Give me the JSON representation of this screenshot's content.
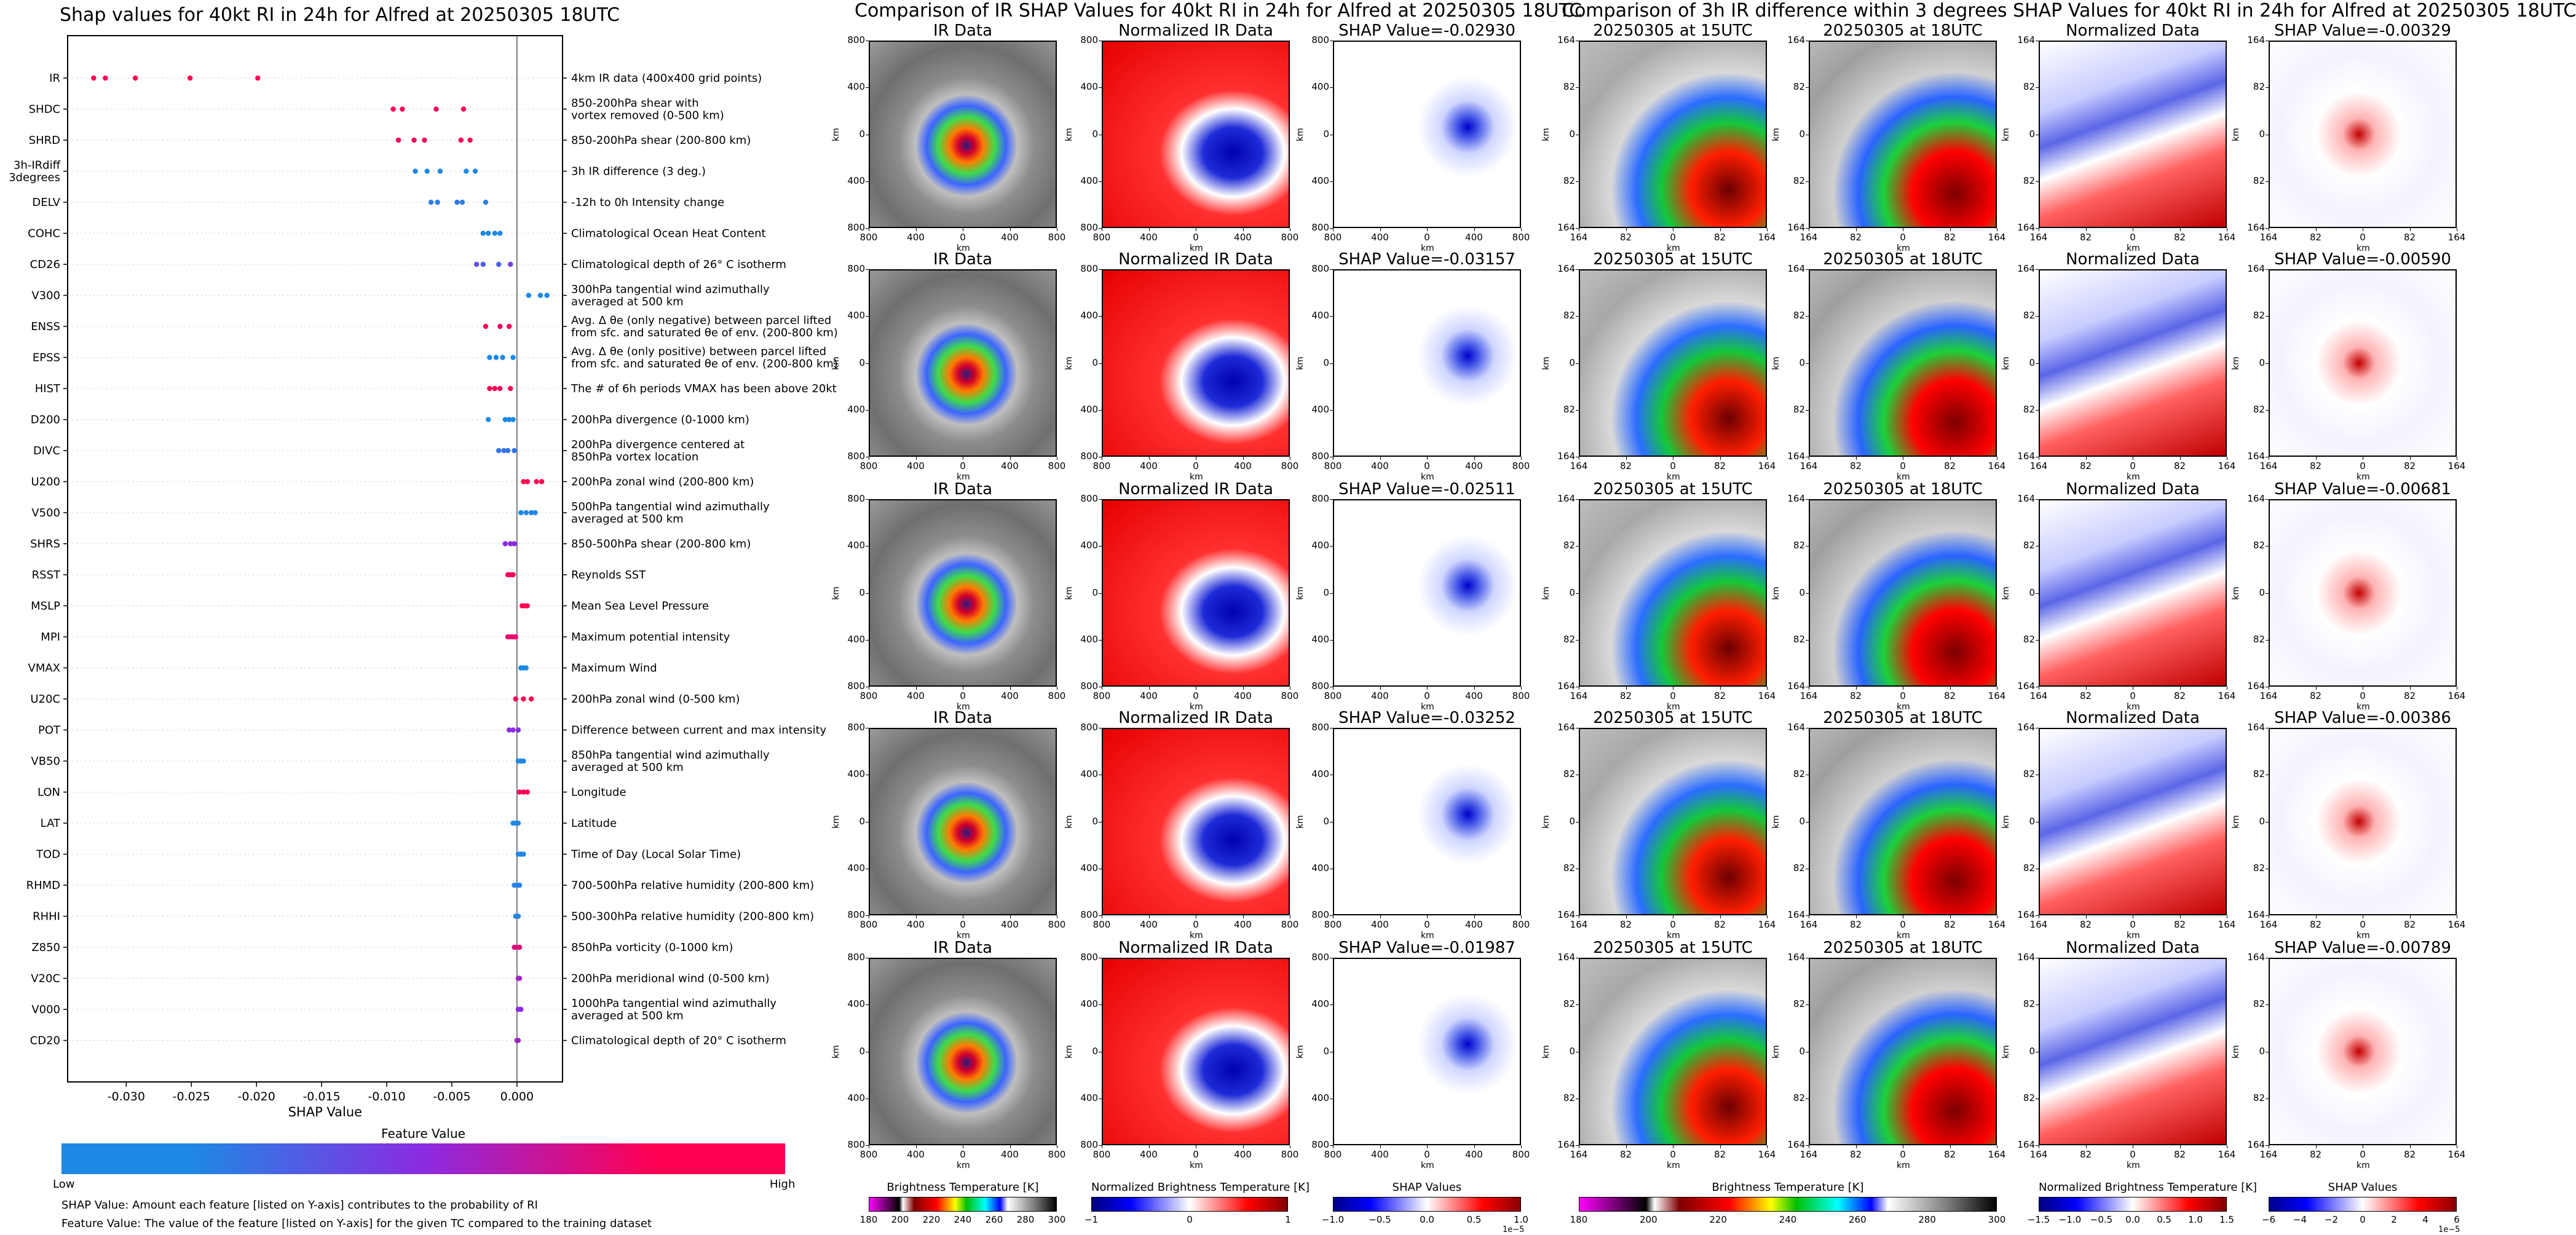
{
  "left_panel": {
    "title": "Shap values for 40kt RI in 24h for Alfred at 20250305 18UTC",
    "xlabel": "SHAP Value",
    "colorbar_title": "Feature Value",
    "colorbar_low": "Low",
    "colorbar_high": "High",
    "footnote_1": "SHAP Value: Amount each feature [listed on Y-axis] contributes to the probability of RI",
    "footnote_2": "Feature Value: The value of the feature [listed on Y-axis] for the given TC compared to the training dataset",
    "colors": {
      "low": "#1e88e5",
      "mid": "#8a2be2",
      "high": "#ff0052"
    }
  },
  "chart_data": {
    "type": "scatter",
    "xlim": [
      -0.0345,
      0.0035
    ],
    "xticks": [
      "-0.030",
      "-0.025",
      "-0.020",
      "-0.015",
      "-0.010",
      "-0.005",
      "0.000"
    ],
    "xtick_values": [
      -0.03,
      -0.025,
      -0.02,
      -0.015,
      -0.01,
      -0.005,
      0.0
    ],
    "features": [
      {
        "name": "IR",
        "desc": [
          "4km IR data (400x400 grid points)"
        ],
        "points": [
          {
            "x": -0.0325,
            "v": 1
          },
          {
            "x": -0.0316,
            "v": 1
          },
          {
            "x": -0.0293,
            "v": 1
          },
          {
            "x": -0.0251,
            "v": 1
          },
          {
            "x": -0.0199,
            "v": 1
          }
        ]
      },
      {
        "name": "SHDC",
        "desc": [
          "850-200hPa shear with",
          "vortex removed (0-500 km)"
        ],
        "points": [
          {
            "x": -0.0095,
            "v": 1
          },
          {
            "x": -0.0088,
            "v": 1
          },
          {
            "x": -0.0062,
            "v": 0.95
          },
          {
            "x": -0.0041,
            "v": 1
          }
        ]
      },
      {
        "name": "SHRD",
        "desc": [
          "850-200hPa shear (200-800 km)"
        ],
        "points": [
          {
            "x": -0.0091,
            "v": 1
          },
          {
            "x": -0.0079,
            "v": 1
          },
          {
            "x": -0.0071,
            "v": 0.95
          },
          {
            "x": -0.0043,
            "v": 1
          },
          {
            "x": -0.0036,
            "v": 1
          }
        ]
      },
      {
        "name": "3h-IRdiff\n3degrees",
        "desc": [
          "3h IR difference (3 deg.)"
        ],
        "points": [
          {
            "x": -0.0078,
            "v": 0
          },
          {
            "x": -0.0069,
            "v": 0
          },
          {
            "x": -0.0059,
            "v": 0
          },
          {
            "x": -0.0039,
            "v": 0
          },
          {
            "x": -0.0032,
            "v": 0
          }
        ]
      },
      {
        "name": "DELV",
        "desc": [
          "-12h to 0h Intensity change"
        ],
        "points": [
          {
            "x": -0.0066,
            "v": 0.05
          },
          {
            "x": -0.0061,
            "v": 0.05
          },
          {
            "x": -0.0046,
            "v": 0.1
          },
          {
            "x": -0.0042,
            "v": 0.05
          },
          {
            "x": -0.0024,
            "v": 0.05
          }
        ]
      },
      {
        "name": "COHC",
        "desc": [
          "Climatological Ocean Heat Content"
        ],
        "points": [
          {
            "x": -0.0026,
            "v": 0
          },
          {
            "x": -0.0022,
            "v": 0
          },
          {
            "x": -0.0017,
            "v": 0
          },
          {
            "x": -0.0013,
            "v": 0
          }
        ]
      },
      {
        "name": "CD26",
        "desc": [
          "Climatological depth of 26° C isotherm"
        ],
        "points": [
          {
            "x": -0.0031,
            "v": 0.3
          },
          {
            "x": -0.0026,
            "v": 0.2
          },
          {
            "x": -0.0014,
            "v": 0.2
          },
          {
            "x": -0.0005,
            "v": 0.4
          }
        ]
      },
      {
        "name": "V300",
        "desc": [
          "300hPa tangential wind azimuthally",
          "averaged at 500 km"
        ],
        "points": [
          {
            "x": 0.0009,
            "v": 0
          },
          {
            "x": 0.0018,
            "v": 0
          },
          {
            "x": 0.0023,
            "v": 0
          }
        ]
      },
      {
        "name": "ENSS",
        "desc": [
          "Avg. Δ θe (only negative) between parcel lifted",
          "from sfc. and saturated θe of env. (200-800 km)"
        ],
        "points": [
          {
            "x": -0.0024,
            "v": 1
          },
          {
            "x": -0.0013,
            "v": 0.95
          },
          {
            "x": -0.0006,
            "v": 1
          }
        ]
      },
      {
        "name": "EPSS",
        "desc": [
          "Avg. Δ θe (only positive) between parcel lifted",
          "from sfc. and saturated θe of env. (200-800 km)"
        ],
        "points": [
          {
            "x": -0.0021,
            "v": 0
          },
          {
            "x": -0.0016,
            "v": 0
          },
          {
            "x": -0.0011,
            "v": 0
          },
          {
            "x": -0.0003,
            "v": 0
          }
        ]
      },
      {
        "name": "HIST",
        "desc": [
          "The # of 6h periods VMAX has been above 20kt"
        ],
        "points": [
          {
            "x": -0.0021,
            "v": 1
          },
          {
            "x": -0.0017,
            "v": 1
          },
          {
            "x": -0.0013,
            "v": 0.95
          },
          {
            "x": -0.0005,
            "v": 1
          }
        ]
      },
      {
        "name": "D200",
        "desc": [
          "200hPa divergence (0-1000 km)"
        ],
        "points": [
          {
            "x": -0.0022,
            "v": 0
          },
          {
            "x": -0.0009,
            "v": 0
          },
          {
            "x": -0.0006,
            "v": 0
          },
          {
            "x": -0.0003,
            "v": 0
          }
        ]
      },
      {
        "name": "DIVC",
        "desc": [
          "200hPa divergence centered at",
          "850hPa vortex location"
        ],
        "points": [
          {
            "x": -0.0014,
            "v": 0.1
          },
          {
            "x": -0.001,
            "v": 0.1
          },
          {
            "x": -0.0007,
            "v": 0.1
          },
          {
            "x": -0.0002,
            "v": 0.1
          }
        ]
      },
      {
        "name": "U200",
        "desc": [
          "200hPa zonal wind (200-800 km)"
        ],
        "points": [
          {
            "x": 0.0005,
            "v": 1
          },
          {
            "x": 0.0008,
            "v": 1
          },
          {
            "x": 0.0015,
            "v": 1
          },
          {
            "x": 0.0019,
            "v": 1
          }
        ]
      },
      {
        "name": "V500",
        "desc": [
          "500hPa tangential wind azimuthally",
          "averaged at 500 km"
        ],
        "points": [
          {
            "x": 0.0003,
            "v": 0
          },
          {
            "x": 0.0007,
            "v": 0
          },
          {
            "x": 0.0011,
            "v": 0
          },
          {
            "x": 0.0014,
            "v": 0
          }
        ]
      },
      {
        "name": "SHRS",
        "desc": [
          "850-500hPa shear (200-800 km)"
        ],
        "points": [
          {
            "x": -0.0009,
            "v": 0.5
          },
          {
            "x": -0.0005,
            "v": 0.5
          },
          {
            "x": -0.0002,
            "v": 0.5
          }
        ]
      },
      {
        "name": "RSST",
        "desc": [
          "Reynolds SST"
        ],
        "points": [
          {
            "x": -0.0007,
            "v": 0.95
          },
          {
            "x": -0.0005,
            "v": 0.95
          },
          {
            "x": -0.0003,
            "v": 0.95
          }
        ]
      },
      {
        "name": "MSLP",
        "desc": [
          "Mean Sea Level Pressure"
        ],
        "points": [
          {
            "x": 0.0004,
            "v": 1
          },
          {
            "x": 0.0006,
            "v": 1
          },
          {
            "x": 0.0008,
            "v": 1
          }
        ]
      },
      {
        "name": "MPI",
        "desc": [
          "Maximum potential intensity"
        ],
        "points": [
          {
            "x": -0.0007,
            "v": 0.9
          },
          {
            "x": -0.0005,
            "v": 0.9
          },
          {
            "x": -0.0003,
            "v": 0.9
          },
          {
            "x": -0.0001,
            "v": 0.9
          }
        ]
      },
      {
        "name": "VMAX",
        "desc": [
          "Maximum Wind"
        ],
        "points": [
          {
            "x": 0.0003,
            "v": 0
          },
          {
            "x": 0.0005,
            "v": 0
          },
          {
            "x": 0.0007,
            "v": 0
          }
        ]
      },
      {
        "name": "U20C",
        "desc": [
          "200hPa zonal wind (0-500 km)"
        ],
        "points": [
          {
            "x": -0.0001,
            "v": 1
          },
          {
            "x": 0.0005,
            "v": 1
          },
          {
            "x": 0.0011,
            "v": 1
          }
        ]
      },
      {
        "name": "POT",
        "desc": [
          "Difference between current and max intensity"
        ],
        "points": [
          {
            "x": -0.0006,
            "v": 0.5
          },
          {
            "x": -0.0003,
            "v": 0.5
          },
          {
            "x": 0.0001,
            "v": 0.5
          }
        ]
      },
      {
        "name": "VB50",
        "desc": [
          "850hPa tangential wind azimuthally",
          "averaged at 500 km"
        ],
        "points": [
          {
            "x": 0.0001,
            "v": 0
          },
          {
            "x": 0.0003,
            "v": 0
          },
          {
            "x": 0.0005,
            "v": 0
          }
        ]
      },
      {
        "name": "LON",
        "desc": [
          "Longitude"
        ],
        "points": [
          {
            "x": 0.0002,
            "v": 1
          },
          {
            "x": 0.0005,
            "v": 1
          },
          {
            "x": 0.0008,
            "v": 1
          }
        ]
      },
      {
        "name": "LAT",
        "desc": [
          "Latitude"
        ],
        "points": [
          {
            "x": -0.0003,
            "v": 0
          },
          {
            "x": -0.0001,
            "v": 0
          },
          {
            "x": 0.0001,
            "v": 0
          }
        ]
      },
      {
        "name": "TOD",
        "desc": [
          "Time of Day (Local Solar Time)"
        ],
        "points": [
          {
            "x": 0.0001,
            "v": 0
          },
          {
            "x": 0.0003,
            "v": 0
          },
          {
            "x": 0.0005,
            "v": 0
          }
        ]
      },
      {
        "name": "RHMD",
        "desc": [
          "700-500hPa relative humidity (200-800 km)"
        ],
        "points": [
          {
            "x": -0.0002,
            "v": 0.05
          },
          {
            "x": 0.0,
            "v": 0.05
          },
          {
            "x": 0.0002,
            "v": 0.05
          }
        ]
      },
      {
        "name": "RHHI",
        "desc": [
          "500-300hPa relative humidity (200-800 km)"
        ],
        "points": [
          {
            "x": -0.0001,
            "v": 0
          },
          {
            "x": 0.0001,
            "v": 0
          }
        ]
      },
      {
        "name": "Z850",
        "desc": [
          "850hPa vorticity (0-1000 km)"
        ],
        "points": [
          {
            "x": -0.0002,
            "v": 0.85
          },
          {
            "x": 0.0,
            "v": 0.85
          },
          {
            "x": 0.0002,
            "v": 0.85
          }
        ]
      },
      {
        "name": "V20C",
        "desc": [
          "200hPa meridional wind (0-500 km)"
        ],
        "points": [
          {
            "x": 0.0001,
            "v": 0.6
          },
          {
            "x": 0.0002,
            "v": 0.6
          }
        ]
      },
      {
        "name": "V000",
        "desc": [
          "1000hPa tangential wind azimuthally",
          "averaged at 500 km"
        ],
        "points": [
          {
            "x": 0.0001,
            "v": 0.5
          },
          {
            "x": 0.0003,
            "v": 0.5
          }
        ]
      },
      {
        "name": "CD20",
        "desc": [
          "Climatological depth of 20° C isotherm"
        ],
        "points": [
          {
            "x": 0.0,
            "v": 0.6
          },
          {
            "x": 0.0001,
            "v": 0.6
          }
        ]
      }
    ]
  },
  "middle_section": {
    "title": "Comparison of IR SHAP Values for 40kt RI in 24h for Alfred at 20250305 18UTC",
    "col_titles": [
      "IR Data",
      "Normalized IR Data"
    ],
    "shap_titles": [
      "SHAP Value=-0.02930",
      "SHAP Value=-0.03157",
      "SHAP Value=-0.02511",
      "SHAP Value=-0.03252",
      "SHAP Value=-0.01987"
    ],
    "ticks": [
      "800",
      "400",
      "0",
      "400",
      "800"
    ],
    "axis_label": "km",
    "colorbars": [
      {
        "label": "Brightness Temperature [K]",
        "ticks": [
          "180",
          "200",
          "220",
          "240",
          "260",
          "280",
          "300"
        ],
        "exp": ""
      },
      {
        "label": "Normalized Brightness Temperature [K]",
        "ticks": [
          "−1",
          "0",
          "1"
        ],
        "exp": ""
      },
      {
        "label": "SHAP Values",
        "ticks": [
          "−1.0",
          "−0.5",
          "0.0",
          "0.5",
          "1.0"
        ],
        "exp": "1e−5"
      }
    ]
  },
  "right_section": {
    "title": "Comparison of 3h IR difference within 3 degrees SHAP Values for 40kt RI in 24h for Alfred at 20250305 18UTC",
    "col_titles": [
      "20250305 at 15UTC",
      "20250305 at 18UTC",
      "Normalized Data"
    ],
    "shap_titles": [
      "SHAP Value=-0.00329",
      "SHAP Value=-0.00590",
      "SHAP Value=-0.00681",
      "SHAP Value=-0.00386",
      "SHAP Value=-0.00789"
    ],
    "ticks": [
      "164",
      "82",
      "0",
      "82",
      "164"
    ],
    "axis_label": "km",
    "colorbars": [
      {
        "label": "Brightness Temperature [K]",
        "ticks": [
          "180",
          "200",
          "220",
          "240",
          "260",
          "280",
          "300"
        ],
        "exp": ""
      },
      {
        "label": "Normalized Brightness Temperature [K]",
        "ticks": [
          "−1.5",
          "−1.0",
          "−0.5",
          "0.0",
          "0.5",
          "1.0",
          "1.5"
        ],
        "exp": ""
      },
      {
        "label": "SHAP Values",
        "ticks": [
          "−6",
          "−4",
          "−2",
          "0",
          "2",
          "4",
          "6"
        ],
        "exp": "1e−5"
      }
    ]
  }
}
